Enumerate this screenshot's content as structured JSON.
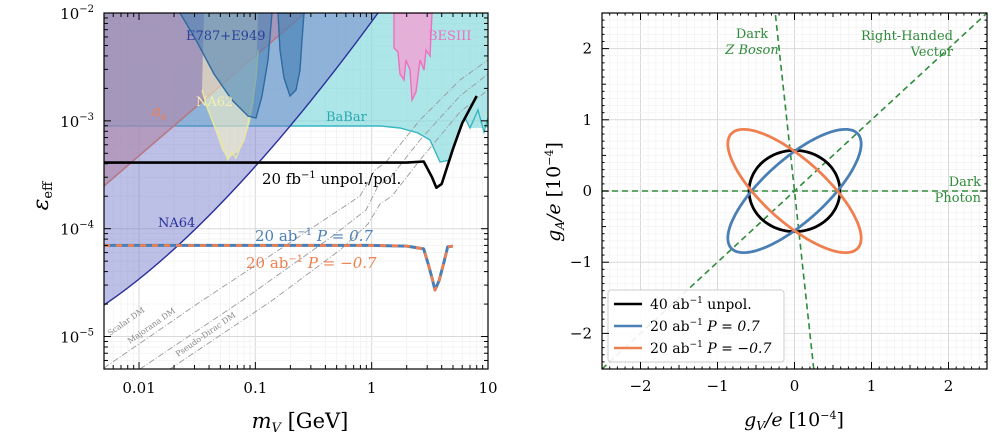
{
  "chart_data": [
    {
      "type": "line",
      "title": "",
      "xlabel": "m_V [GeV]",
      "ylabel": "ε_eff",
      "xscale": "log",
      "yscale": "log",
      "xlim": [
        0.005,
        10
      ],
      "ylim": [
        5e-06,
        0.01
      ],
      "x_tick_labels": [
        "0.01",
        "0.1",
        "1",
        "10"
      ],
      "x_tick_values": [
        0.01,
        0.1,
        1,
        10
      ],
      "y_tick_labels": [
        "10^-5",
        "10^-4",
        "10^-3",
        "10^-2"
      ],
      "y_tick_values": [
        1e-05,
        0.0001,
        0.001,
        0.01
      ],
      "shaded_regions": [
        {
          "name": "a_e",
          "color": "#e9967a"
        },
        {
          "name": "E787+E949",
          "color": "#4682b4"
        },
        {
          "name": "NA62",
          "color": "#ffffb0"
        },
        {
          "name": "BaBar",
          "color": "#48c9d0"
        },
        {
          "name": "BESIII",
          "color": "#f06ebe"
        },
        {
          "name": "NA64",
          "color": "#2a2f9a"
        }
      ],
      "region_labels": {
        "ae": "a",
        "ae_sub": "e",
        "e787": "E787+E949",
        "na62": "NA62",
        "babar": "BaBar",
        "besiii": "BESIII",
        "na64": "NA64"
      },
      "dm_lines": [
        "Scalar DM",
        "Majorana DM",
        "Pseudo-Dirac DM"
      ],
      "series": [
        {
          "name": "20 fb^-1 unpol./pol.",
          "label_main": "20 fb",
          "label_exp": "−1",
          "label_rest": " unpol./pol.",
          "color": "#000000",
          "x": [
            0.005,
            0.1,
            0.5,
            1.0,
            2.0,
            2.8,
            3.3,
            3.6,
            4.0,
            5.0,
            6.0,
            8.0
          ],
          "y": [
            0.00041,
            0.00041,
            0.00041,
            0.00041,
            0.00041,
            0.00042,
            0.0003,
            0.00024,
            0.00026,
            0.00055,
            0.00095,
            0.0017
          ]
        },
        {
          "name": "20 ab^-1 P = 0.7",
          "label_main": "20 ab",
          "label_exp": "−1",
          "label_rest": " P = 0.7",
          "color": "#4a7fb5",
          "x": [
            0.005,
            0.1,
            1.0,
            2.0,
            2.8,
            3.1,
            3.3,
            3.5,
            3.8,
            4.2,
            4.5,
            5.0
          ],
          "y": [
            7e-05,
            7e-05,
            7e-05,
            6.9e-05,
            6.5e-05,
            4.5e-05,
            3.5e-05,
            2.7e-05,
            3.3e-05,
            5e-05,
            6.8e-05,
            6.9e-05
          ]
        },
        {
          "name": "20 ab^-1 P = -0.7",
          "label_main": "20 ab",
          "label_exp": "−1",
          "label_rest": " P = −0.7",
          "color": "#f07f50",
          "x": [
            0.005,
            0.1,
            1.0,
            2.0,
            2.8,
            3.1,
            3.3,
            3.5,
            3.8,
            4.2,
            4.5,
            5.0
          ],
          "y": [
            7e-05,
            7e-05,
            7e-05,
            6.9e-05,
            6.5e-05,
            4.5e-05,
            3.5e-05,
            2.7e-05,
            3.3e-05,
            5e-05,
            6.8e-05,
            6.9e-05
          ]
        }
      ]
    },
    {
      "type": "line",
      "title": "",
      "xlabel": "g_V/e [10^-4]",
      "ylabel": "g_A/e [10^-4]",
      "xlim": [
        -2.5,
        2.5
      ],
      "ylim": [
        -2.5,
        2.5
      ],
      "x_tick_labels": [
        "−2",
        "−1",
        "0",
        "1",
        "2"
      ],
      "x_tick_values": [
        -2,
        -1,
        0,
        1,
        2
      ],
      "y_tick_labels": [
        "−2",
        "−1",
        "0",
        "1",
        "2"
      ],
      "y_tick_values": [
        -2,
        -1,
        0,
        1,
        2
      ],
      "legend_position": "bottom-left",
      "series": [
        {
          "name": "40 ab^-1 unpol.",
          "label_main": "40 ab",
          "label_exp": "−1",
          "label_rest": " unpol.",
          "color": "#000000",
          "shape": "ellipse",
          "center": [
            0,
            0
          ],
          "semi_major": 0.59,
          "semi_minor": 0.57,
          "angle_deg": 0
        },
        {
          "name": "20 ab^-1 P = 0.7",
          "label_main": "20 ab",
          "label_exp": "−1",
          "label_rest": " P = 0.7",
          "color": "#4a7fb5",
          "shape": "ellipse",
          "center": [
            0,
            0
          ],
          "semi_major": 1.15,
          "semi_minor": 0.42,
          "angle_deg": 45
        },
        {
          "name": "20 ab^-1 P = -0.7",
          "label_main": "20 ab",
          "label_exp": "−1",
          "label_rest": " P = −0.7",
          "color": "#f07f50",
          "shape": "ellipse",
          "center": [
            0,
            0
          ],
          "semi_major": 1.15,
          "semi_minor": 0.42,
          "angle_deg": -45
        }
      ],
      "reference_lines": [
        {
          "name": "Dark Z Boson",
          "label_lines": [
            "Dark",
            "Z Boson"
          ],
          "color": "#2e8b3a",
          "slope": -10.0
        },
        {
          "name": "Right-Handed Vector",
          "label_lines": [
            "Right-Handed",
            "Vector"
          ],
          "color": "#2e8b3a",
          "slope": 1.0
        },
        {
          "name": "Dark Photon",
          "label_lines": [
            "Dark",
            "Photon"
          ],
          "color": "#2e8b3a",
          "slope": 0.0
        }
      ]
    }
  ]
}
